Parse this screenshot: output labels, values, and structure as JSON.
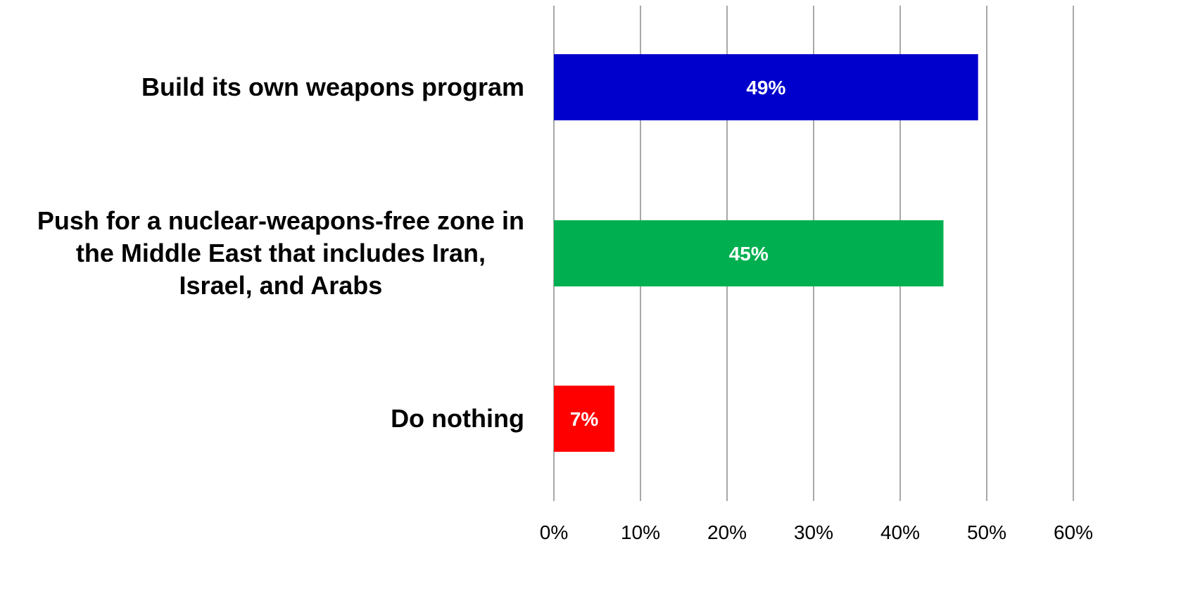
{
  "chart_data": {
    "type": "bar",
    "orientation": "horizontal",
    "categories": [
      [
        "Build its own weapons program"
      ],
      [
        "Push for a nuclear-weapons-free zone in",
        "the Middle East that includes Iran,",
        "Israel, and Arabs"
      ],
      [
        "Do nothing"
      ]
    ],
    "values": [
      49,
      45,
      7
    ],
    "data_labels": [
      "49%",
      "45%",
      "7%"
    ],
    "bar_colors": [
      "#0000cc",
      "#00b050",
      "#ff0000"
    ],
    "xlim": [
      0,
      60
    ],
    "x_ticks": [
      0,
      10,
      20,
      30,
      40,
      50,
      60
    ],
    "x_tick_labels": [
      "0%",
      "10%",
      "20%",
      "30%",
      "40%",
      "50%",
      "60%"
    ],
    "grid": "vertical",
    "legend": "none",
    "title": "",
    "xlabel": "",
    "ylabel": ""
  }
}
